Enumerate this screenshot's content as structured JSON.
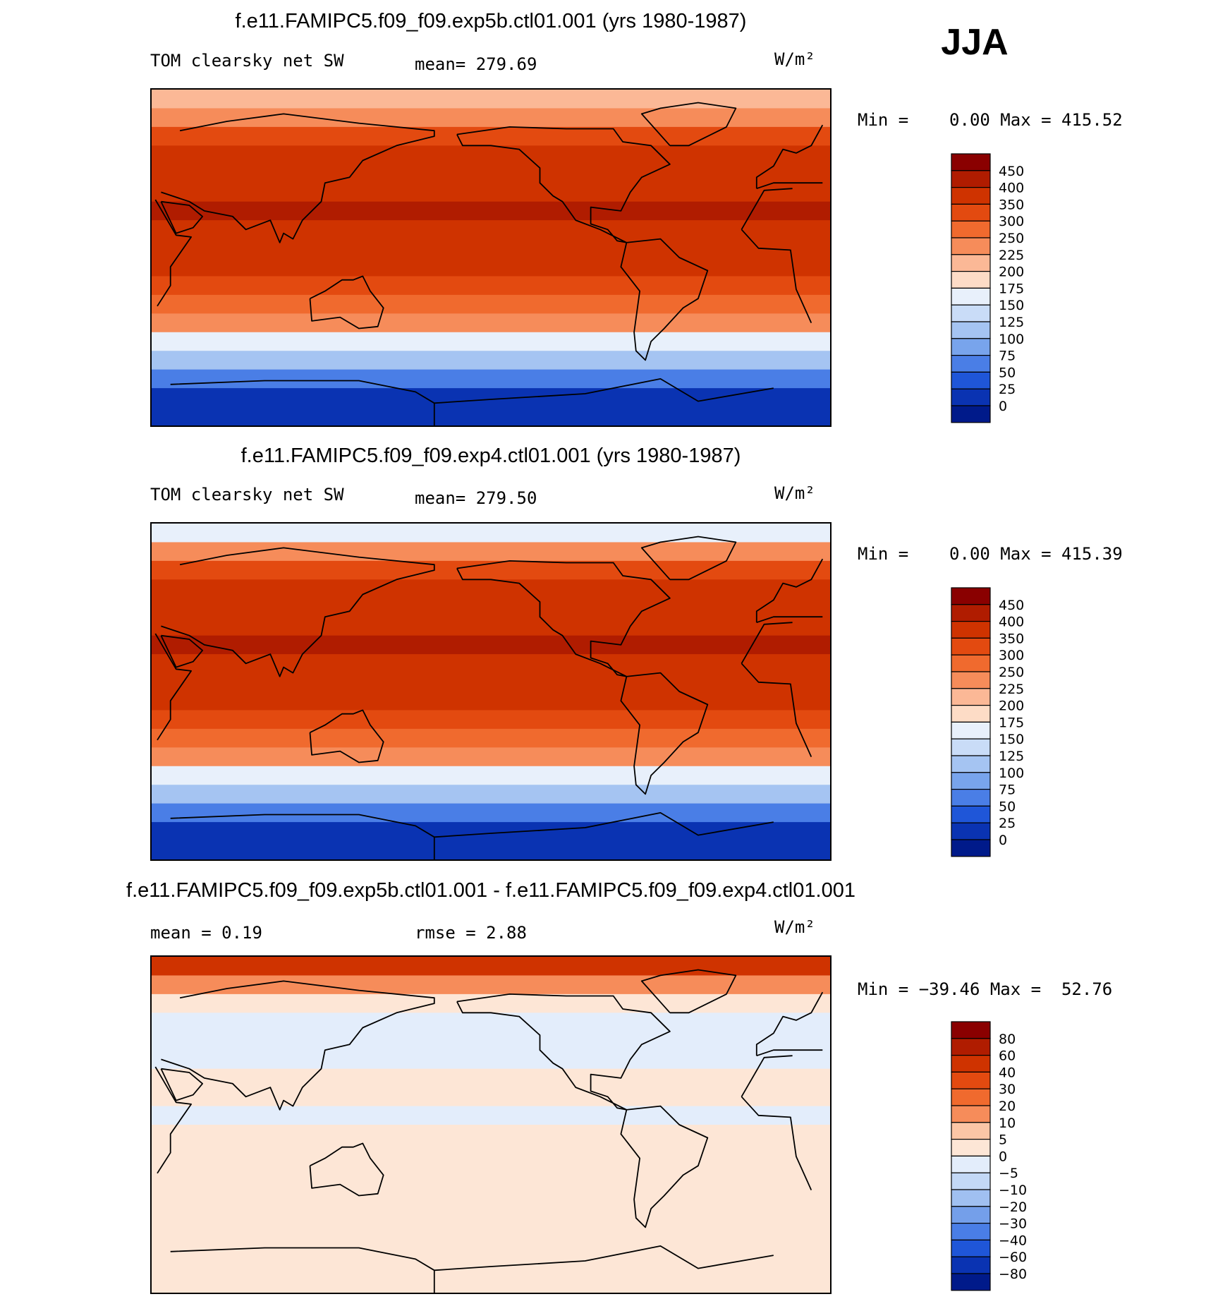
{
  "season": "JJA",
  "panels": [
    {
      "title": "f.e11.FAMIPC5.f09_f09.exp5b.ctl01.001 (yrs 1980-1987)",
      "left_label": "TOM clearsky net SW",
      "mid_label": "mean=  279.69",
      "units": "W/m²",
      "minmax": "Min =    0.00 Max = 415.52",
      "colorbar": {
        "labels": [
          "450",
          "400",
          "350",
          "300",
          "250",
          "225",
          "200",
          "175",
          "150",
          "125",
          "100",
          "75",
          "50",
          "25",
          "0"
        ],
        "colors": [
          "#8a0000",
          "#b01c00",
          "#cf3300",
          "#e34a10",
          "#f06a2e",
          "#f68c5a",
          "#fbb896",
          "#fddcc6",
          "#e8f0fb",
          "#c9dcf7",
          "#a5c4f2",
          "#78a4ec",
          "#4a7ee6",
          "#1f56d8",
          "#0a33b2",
          "#001a8a"
        ]
      }
    },
    {
      "title": "f.e11.FAMIPC5.f09_f09.exp4.ctl01.001 (yrs 1980-1987)",
      "left_label": "TOM clearsky net SW",
      "mid_label": "mean=  279.50",
      "units": "W/m²",
      "minmax": "Min =    0.00 Max = 415.39",
      "colorbar": {
        "labels": [
          "450",
          "400",
          "350",
          "300",
          "250",
          "225",
          "200",
          "175",
          "150",
          "125",
          "100",
          "75",
          "50",
          "25",
          "0"
        ],
        "colors": [
          "#8a0000",
          "#b01c00",
          "#cf3300",
          "#e34a10",
          "#f06a2e",
          "#f68c5a",
          "#fbb896",
          "#fddcc6",
          "#e8f0fb",
          "#c9dcf7",
          "#a5c4f2",
          "#78a4ec",
          "#4a7ee6",
          "#1f56d8",
          "#0a33b2",
          "#001a8a"
        ]
      }
    },
    {
      "title": "f.e11.FAMIPC5.f09_f09.exp5b.ctl01.001 - f.e11.FAMIPC5.f09_f09.exp4.ctl01.001",
      "left_label": "mean =    0.19",
      "mid_label": "rmse =    2.88",
      "units": "W/m²",
      "minmax": "Min = −39.46 Max =  52.76",
      "colorbar": {
        "labels": [
          "80",
          "60",
          "40",
          "30",
          "20",
          "10",
          "5",
          "0",
          "−5",
          "−10",
          "−20",
          "−30",
          "−40",
          "−60",
          "−80"
        ],
        "colors": [
          "#8a0000",
          "#b01c00",
          "#cf3300",
          "#e34a10",
          "#f06a2e",
          "#f68c5a",
          "#fbc6a6",
          "#fde6d6",
          "#e3edfb",
          "#c3d8f6",
          "#a0c0f1",
          "#749fea",
          "#4a7ee6",
          "#1f56d8",
          "#0a33b2",
          "#001a8a"
        ]
      }
    }
  ],
  "chart_data": [
    {
      "type": "heatmap",
      "title": "f.e11.FAMIPC5.f09_f09.exp5b.ctl01.001 (yrs 1980-1987)",
      "variable": "TOM clearsky net SW",
      "units": "W/m²",
      "mean": 279.69,
      "min": 0.0,
      "max": 415.52,
      "contour_levels": [
        0,
        25,
        50,
        75,
        100,
        125,
        150,
        175,
        200,
        225,
        250,
        300,
        350,
        400,
        450
      ],
      "zonal_profile": {
        "lat": [
          85,
          75,
          65,
          55,
          45,
          35,
          25,
          15,
          5,
          -5,
          -15,
          -25,
          -35,
          -45,
          -55,
          -65,
          -75,
          -85
        ],
        "values": [
          215,
          240,
          330,
          355,
          370,
          395,
          405,
          395,
          380,
          365,
          330,
          290,
          240,
          170,
          110,
          50,
          20,
          0
        ]
      }
    },
    {
      "type": "heatmap",
      "title": "f.e11.FAMIPC5.f09_f09.exp4.ctl01.001 (yrs 1980-1987)",
      "variable": "TOM clearsky net SW",
      "units": "W/m²",
      "mean": 279.5,
      "min": 0.0,
      "max": 415.39,
      "contour_levels": [
        0,
        25,
        50,
        75,
        100,
        125,
        150,
        175,
        200,
        225,
        250,
        300,
        350,
        400,
        450
      ],
      "zonal_profile": {
        "lat": [
          85,
          75,
          65,
          55,
          45,
          35,
          25,
          15,
          5,
          -5,
          -15,
          -25,
          -35,
          -45,
          -55,
          -65,
          -75,
          -85
        ],
        "values": [
          160,
          240,
          330,
          355,
          370,
          395,
          405,
          395,
          380,
          365,
          330,
          290,
          240,
          170,
          110,
          50,
          20,
          0
        ]
      }
    },
    {
      "type": "heatmap",
      "title": "f.e11.FAMIPC5.f09_f09.exp5b.ctl01.001 - f.e11.FAMIPC5.f09_f09.exp4.ctl01.001",
      "units": "W/m²",
      "mean": 0.19,
      "rmse": 2.88,
      "min": -39.46,
      "max": 52.76,
      "contour_levels": [
        -80,
        -60,
        -40,
        -30,
        -20,
        -10,
        -5,
        0,
        5,
        10,
        20,
        30,
        40,
        60,
        80
      ],
      "zonal_profile": {
        "lat": [
          85,
          75,
          65,
          55,
          45,
          35,
          25,
          15,
          5,
          -5,
          -15,
          -25,
          -35,
          -45,
          -55,
          -65,
          -75,
          -85
        ],
        "values": [
          40,
          10,
          2,
          -1,
          -2,
          -2,
          1,
          1,
          -1,
          1,
          2,
          2,
          2,
          2,
          2,
          2,
          2,
          2
        ]
      }
    }
  ]
}
